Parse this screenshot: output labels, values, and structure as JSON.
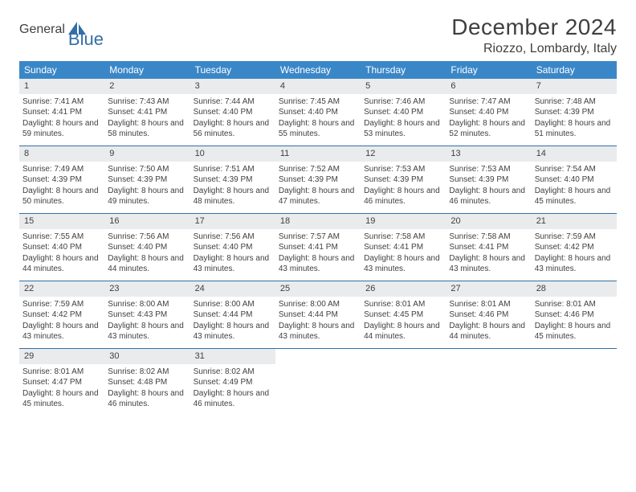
{
  "logo": {
    "part1": "General",
    "part2": "Blue"
  },
  "title": "December 2024",
  "location": "Riozzo, Lombardy, Italy",
  "colors": {
    "header_bg": "#3a87c8",
    "header_text": "#ffffff",
    "daynum_bg": "#e9ebec",
    "rule": "#336fa6",
    "text": "#3f3f3f",
    "logo_gray": "#555b60",
    "logo_blue": "#336fa6",
    "page_bg": "#ffffff"
  },
  "typography": {
    "title_size_pt": 21,
    "location_size_pt": 12,
    "dow_size_pt": 9,
    "cell_size_pt": 7.5
  },
  "days_of_week": [
    "Sunday",
    "Monday",
    "Tuesday",
    "Wednesday",
    "Thursday",
    "Friday",
    "Saturday"
  ],
  "weeks": [
    [
      {
        "n": "1",
        "sunrise": "7:41 AM",
        "sunset": "4:41 PM",
        "daylight": "8 hours and 59 minutes."
      },
      {
        "n": "2",
        "sunrise": "7:43 AM",
        "sunset": "4:41 PM",
        "daylight": "8 hours and 58 minutes."
      },
      {
        "n": "3",
        "sunrise": "7:44 AM",
        "sunset": "4:40 PM",
        "daylight": "8 hours and 56 minutes."
      },
      {
        "n": "4",
        "sunrise": "7:45 AM",
        "sunset": "4:40 PM",
        "daylight": "8 hours and 55 minutes."
      },
      {
        "n": "5",
        "sunrise": "7:46 AM",
        "sunset": "4:40 PM",
        "daylight": "8 hours and 53 minutes."
      },
      {
        "n": "6",
        "sunrise": "7:47 AM",
        "sunset": "4:40 PM",
        "daylight": "8 hours and 52 minutes."
      },
      {
        "n": "7",
        "sunrise": "7:48 AM",
        "sunset": "4:39 PM",
        "daylight": "8 hours and 51 minutes."
      }
    ],
    [
      {
        "n": "8",
        "sunrise": "7:49 AM",
        "sunset": "4:39 PM",
        "daylight": "8 hours and 50 minutes."
      },
      {
        "n": "9",
        "sunrise": "7:50 AM",
        "sunset": "4:39 PM",
        "daylight": "8 hours and 49 minutes."
      },
      {
        "n": "10",
        "sunrise": "7:51 AM",
        "sunset": "4:39 PM",
        "daylight": "8 hours and 48 minutes."
      },
      {
        "n": "11",
        "sunrise": "7:52 AM",
        "sunset": "4:39 PM",
        "daylight": "8 hours and 47 minutes."
      },
      {
        "n": "12",
        "sunrise": "7:53 AM",
        "sunset": "4:39 PM",
        "daylight": "8 hours and 46 minutes."
      },
      {
        "n": "13",
        "sunrise": "7:53 AM",
        "sunset": "4:39 PM",
        "daylight": "8 hours and 46 minutes."
      },
      {
        "n": "14",
        "sunrise": "7:54 AM",
        "sunset": "4:40 PM",
        "daylight": "8 hours and 45 minutes."
      }
    ],
    [
      {
        "n": "15",
        "sunrise": "7:55 AM",
        "sunset": "4:40 PM",
        "daylight": "8 hours and 44 minutes."
      },
      {
        "n": "16",
        "sunrise": "7:56 AM",
        "sunset": "4:40 PM",
        "daylight": "8 hours and 44 minutes."
      },
      {
        "n": "17",
        "sunrise": "7:56 AM",
        "sunset": "4:40 PM",
        "daylight": "8 hours and 43 minutes."
      },
      {
        "n": "18",
        "sunrise": "7:57 AM",
        "sunset": "4:41 PM",
        "daylight": "8 hours and 43 minutes."
      },
      {
        "n": "19",
        "sunrise": "7:58 AM",
        "sunset": "4:41 PM",
        "daylight": "8 hours and 43 minutes."
      },
      {
        "n": "20",
        "sunrise": "7:58 AM",
        "sunset": "4:41 PM",
        "daylight": "8 hours and 43 minutes."
      },
      {
        "n": "21",
        "sunrise": "7:59 AM",
        "sunset": "4:42 PM",
        "daylight": "8 hours and 43 minutes."
      }
    ],
    [
      {
        "n": "22",
        "sunrise": "7:59 AM",
        "sunset": "4:42 PM",
        "daylight": "8 hours and 43 minutes."
      },
      {
        "n": "23",
        "sunrise": "8:00 AM",
        "sunset": "4:43 PM",
        "daylight": "8 hours and 43 minutes."
      },
      {
        "n": "24",
        "sunrise": "8:00 AM",
        "sunset": "4:44 PM",
        "daylight": "8 hours and 43 minutes."
      },
      {
        "n": "25",
        "sunrise": "8:00 AM",
        "sunset": "4:44 PM",
        "daylight": "8 hours and 43 minutes."
      },
      {
        "n": "26",
        "sunrise": "8:01 AM",
        "sunset": "4:45 PM",
        "daylight": "8 hours and 44 minutes."
      },
      {
        "n": "27",
        "sunrise": "8:01 AM",
        "sunset": "4:46 PM",
        "daylight": "8 hours and 44 minutes."
      },
      {
        "n": "28",
        "sunrise": "8:01 AM",
        "sunset": "4:46 PM",
        "daylight": "8 hours and 45 minutes."
      }
    ],
    [
      {
        "n": "29",
        "sunrise": "8:01 AM",
        "sunset": "4:47 PM",
        "daylight": "8 hours and 45 minutes."
      },
      {
        "n": "30",
        "sunrise": "8:02 AM",
        "sunset": "4:48 PM",
        "daylight": "8 hours and 46 minutes."
      },
      {
        "n": "31",
        "sunrise": "8:02 AM",
        "sunset": "4:49 PM",
        "daylight": "8 hours and 46 minutes."
      },
      null,
      null,
      null,
      null
    ]
  ],
  "labels": {
    "sunrise": "Sunrise: ",
    "sunset": "Sunset: ",
    "daylight": "Daylight: "
  }
}
